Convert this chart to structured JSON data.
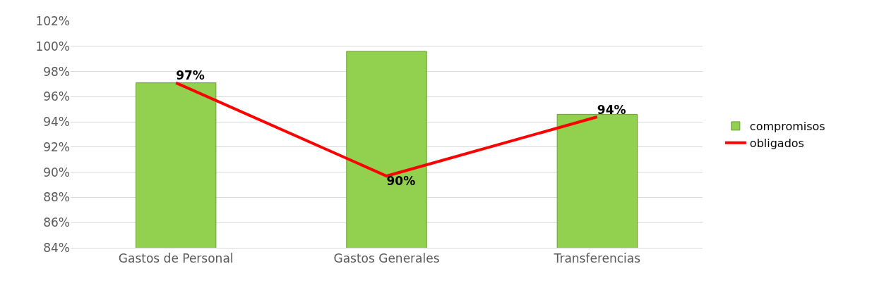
{
  "chart_data": {
    "type": "bar",
    "categories": [
      "Gastos de Personal",
      "Gastos Generales",
      "Transferencias"
    ],
    "series": [
      {
        "name": "compromisos",
        "color": "#92d050",
        "values": [
          97.1,
          99.6,
          94.6
        ]
      },
      {
        "name": "obligados",
        "type": "line",
        "color": "#ff0000",
        "values": [
          97.1,
          89.7,
          94.4
        ],
        "value_labels": [
          "97%",
          "90%",
          "94%"
        ]
      }
    ],
    "ylim": [
      84,
      102
    ],
    "yticks": [
      {
        "value": 84,
        "label": "84%"
      },
      {
        "value": 86,
        "label": "86%"
      },
      {
        "value": 88,
        "label": "88%"
      },
      {
        "value": 90,
        "label": "90%"
      },
      {
        "value": 92,
        "label": "92%"
      },
      {
        "value": 94,
        "label": "94%"
      },
      {
        "value": 96,
        "label": "96%"
      },
      {
        "value": 98,
        "label": "98%"
      },
      {
        "value": 100,
        "label": "100%"
      },
      {
        "value": 102,
        "label": "102%"
      }
    ],
    "grid": "y",
    "legend": "right",
    "marker": "none",
    "line_style": "solid"
  }
}
